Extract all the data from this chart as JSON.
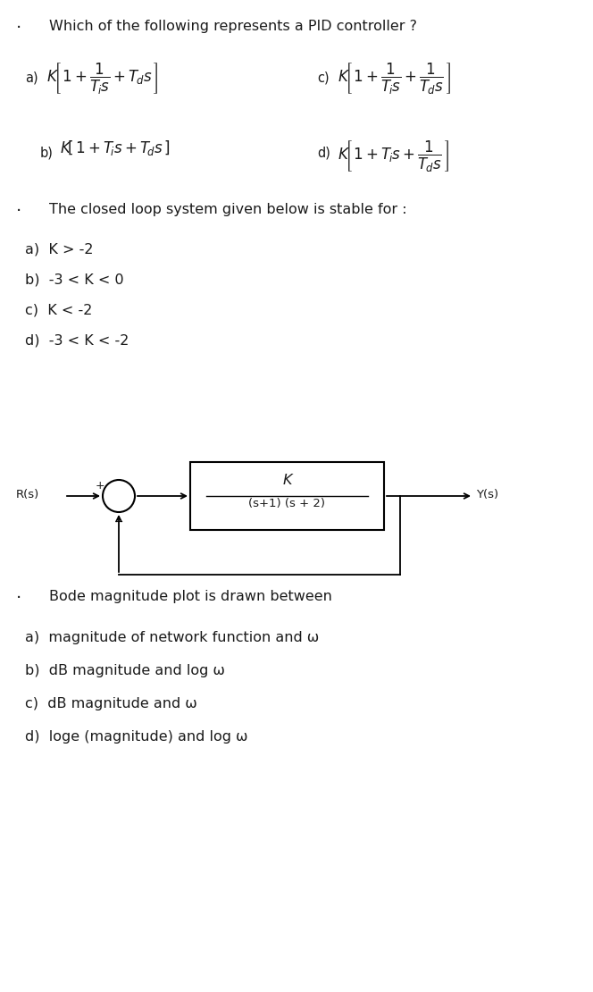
{
  "bg_color": "#ffffff",
  "text_color": "#1a1a1a",
  "q1_header": "Which of the following represents a PID controller ?",
  "q2_header": "The closed loop system given below is stable for :",
  "q2_options": [
    "a)  K > -2",
    "b)  -3 < K < 0",
    "c)  K < -2",
    "d)  -3 < K < -2"
  ],
  "q3_header": "Bode magnitude plot is drawn between",
  "q3_options": [
    "a)  magnitude of network function and ω",
    "b)  dB magnitude and log ω",
    "c)  dB magnitude and ω",
    "d)  loge (magnitude) and log ω"
  ],
  "figw": 6.64,
  "figh": 11.1,
  "dpi": 100
}
